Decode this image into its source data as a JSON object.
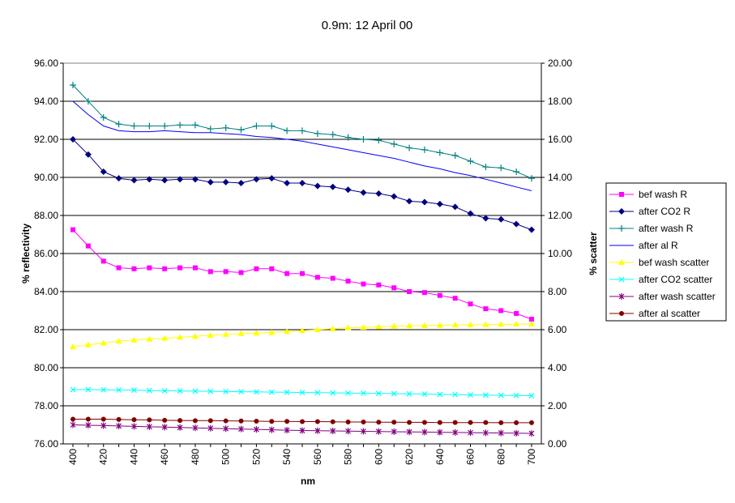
{
  "chart_data": {
    "type": "line",
    "title": "0.9m: 12 April 00",
    "xlabel": "nm",
    "ylabel_left": "% reflectivity",
    "ylabel_right": "% scatter",
    "x_ticks": [
      "400",
      "420",
      "440",
      "460",
      "480",
      "500",
      "520",
      "540",
      "560",
      "580",
      "600",
      "620",
      "640",
      "660",
      "680",
      "700"
    ],
    "left_ticks": [
      "76.00",
      "78.00",
      "80.00",
      "82.00",
      "84.00",
      "86.00",
      "88.00",
      "90.00",
      "92.00",
      "94.00",
      "96.00"
    ],
    "right_ticks": [
      "0.00",
      "2.00",
      "4.00",
      "6.00",
      "8.00",
      "10.00",
      "12.00",
      "14.00",
      "16.00",
      "18.00",
      "20.00"
    ],
    "xlim": [
      400,
      700
    ],
    "ylim_left": [
      76,
      96
    ],
    "ylim_right": [
      0,
      20
    ],
    "grid": "horizontal major gridlines",
    "legend_position": "right",
    "x": [
      400,
      410,
      420,
      430,
      440,
      450,
      460,
      470,
      480,
      490,
      500,
      510,
      520,
      530,
      540,
      550,
      560,
      570,
      580,
      590,
      600,
      610,
      620,
      630,
      640,
      650,
      660,
      670,
      680,
      690,
      700
    ],
    "series": [
      {
        "name": "bef wash R",
        "axis": "left",
        "color": "#ff00ff",
        "marker": "square",
        "values": [
          87.25,
          86.4,
          85.6,
          85.25,
          85.2,
          85.25,
          85.2,
          85.25,
          85.25,
          85.05,
          85.05,
          85.0,
          85.2,
          85.2,
          84.95,
          84.95,
          84.75,
          84.7,
          84.55,
          84.4,
          84.35,
          84.2,
          84.0,
          83.95,
          83.8,
          83.65,
          83.35,
          83.1,
          83.0,
          82.85,
          82.55
        ]
      },
      {
        "name": "after CO2 R",
        "axis": "left",
        "color": "#000080",
        "marker": "diamond",
        "values": [
          92.0,
          91.2,
          90.3,
          89.95,
          89.85,
          89.9,
          89.85,
          89.9,
          89.9,
          89.75,
          89.75,
          89.7,
          89.9,
          89.95,
          89.7,
          89.7,
          89.55,
          89.5,
          89.35,
          89.2,
          89.15,
          89.0,
          88.75,
          88.7,
          88.6,
          88.45,
          88.1,
          87.85,
          87.8,
          87.55,
          87.25
        ]
      },
      {
        "name": "after wash R",
        "axis": "left",
        "color": "#008080",
        "marker": "plus",
        "values": [
          94.85,
          94.0,
          93.15,
          92.8,
          92.7,
          92.7,
          92.7,
          92.75,
          92.75,
          92.55,
          92.6,
          92.5,
          92.7,
          92.7,
          92.45,
          92.45,
          92.3,
          92.25,
          92.1,
          92.0,
          91.95,
          91.75,
          91.55,
          91.45,
          91.3,
          91.15,
          90.85,
          90.55,
          90.5,
          90.3,
          89.95
        ]
      },
      {
        "name": "after al R",
        "axis": "left",
        "color": "#0000ff",
        "marker": "none",
        "values": [
          94.0,
          93.3,
          92.7,
          92.45,
          92.4,
          92.4,
          92.45,
          92.4,
          92.35,
          92.35,
          92.3,
          92.25,
          92.15,
          92.1,
          92.0,
          91.9,
          91.75,
          91.6,
          91.45,
          91.3,
          91.15,
          91.0,
          90.8,
          90.6,
          90.45,
          90.25,
          90.1,
          89.9,
          89.7,
          89.5,
          89.3
        ]
      },
      {
        "name": "bef wash scatter",
        "axis": "right",
        "color": "#ffff00",
        "marker": "triangle",
        "values": [
          5.1,
          5.2,
          5.3,
          5.4,
          5.45,
          5.5,
          5.55,
          5.6,
          5.65,
          5.7,
          5.75,
          5.8,
          5.82,
          5.85,
          5.9,
          5.95,
          6.0,
          6.05,
          6.1,
          6.12,
          6.15,
          6.18,
          6.2,
          6.22,
          6.23,
          6.25,
          6.26,
          6.27,
          6.28,
          6.29,
          6.3
        ]
      },
      {
        "name": "after CO2 scatter",
        "axis": "right",
        "color": "#00ffff",
        "marker": "x",
        "values": [
          2.85,
          2.85,
          2.84,
          2.83,
          2.82,
          2.8,
          2.79,
          2.78,
          2.77,
          2.76,
          2.75,
          2.74,
          2.73,
          2.72,
          2.71,
          2.7,
          2.69,
          2.68,
          2.67,
          2.66,
          2.65,
          2.64,
          2.63,
          2.62,
          2.6,
          2.59,
          2.57,
          2.56,
          2.55,
          2.54,
          2.53
        ]
      },
      {
        "name": "after wash scatter",
        "axis": "right",
        "color": "#800080",
        "marker": "star",
        "values": [
          1.0,
          0.98,
          0.96,
          0.94,
          0.92,
          0.9,
          0.88,
          0.86,
          0.84,
          0.82,
          0.8,
          0.78,
          0.76,
          0.74,
          0.72,
          0.7,
          0.69,
          0.68,
          0.67,
          0.66,
          0.65,
          0.64,
          0.63,
          0.62,
          0.61,
          0.6,
          0.59,
          0.58,
          0.57,
          0.56,
          0.55
        ]
      },
      {
        "name": "after al scatter",
        "axis": "right",
        "color": "#800000",
        "marker": "circle",
        "values": [
          1.3,
          1.3,
          1.3,
          1.28,
          1.27,
          1.26,
          1.24,
          1.23,
          1.22,
          1.22,
          1.21,
          1.2,
          1.19,
          1.18,
          1.18,
          1.17,
          1.17,
          1.16,
          1.15,
          1.15,
          1.14,
          1.14,
          1.13,
          1.13,
          1.12,
          1.12,
          1.12,
          1.12,
          1.11,
          1.11,
          1.11
        ]
      }
    ]
  }
}
